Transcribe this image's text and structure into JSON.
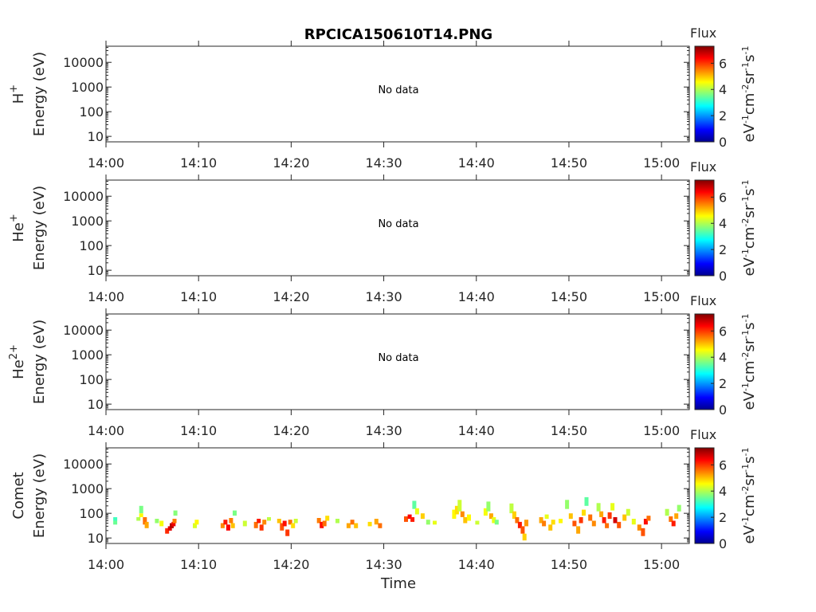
{
  "chart_data": [
    {
      "type": "heatmap",
      "title": "RPCICA150610T14.PNG",
      "species": "H",
      "species_charge": "+",
      "ylabel": "Energy (eV)",
      "yscale": "log",
      "ylim": [
        6,
        45000
      ],
      "yticks": [
        "10",
        "100",
        "1000",
        "10000"
      ],
      "xlim": [
        "14:00",
        "15:03"
      ],
      "xticks": [
        "14:00",
        "14:10",
        "14:20",
        "14:30",
        "14:40",
        "14:50",
        "15:00"
      ],
      "annotation": "No data",
      "colorbar": {
        "label": "Flux",
        "units": "eV",
        "units_b": "-1",
        "units_c": "cm",
        "units_d": "-2",
        "units_e": "sr",
        "units_f": "-1",
        "units_g": "s",
        "units_h": "-1",
        "ticks": [
          "0",
          "2",
          "4",
          "6"
        ],
        "range": [
          0,
          7.3
        ]
      },
      "cells": []
    },
    {
      "type": "heatmap",
      "species": "He",
      "species_charge": "+",
      "ylabel": "Energy (eV)",
      "yscale": "log",
      "ylim": [
        6,
        45000
      ],
      "yticks": [
        "10",
        "100",
        "1000",
        "10000"
      ],
      "xlim": [
        "14:00",
        "15:03"
      ],
      "xticks": [
        "14:00",
        "14:10",
        "14:20",
        "14:30",
        "14:40",
        "14:50",
        "15:00"
      ],
      "annotation": "No data",
      "colorbar": {
        "label": "Flux",
        "ticks": [
          "0",
          "2",
          "4",
          "6"
        ],
        "range": [
          0,
          7.3
        ]
      },
      "cells": []
    },
    {
      "type": "heatmap",
      "species": "He",
      "species_charge": "2+",
      "ylabel": "Energy (eV)",
      "yscale": "log",
      "ylim": [
        6,
        45000
      ],
      "yticks": [
        "10",
        "100",
        "1000",
        "10000"
      ],
      "xlim": [
        "14:00",
        "15:03"
      ],
      "xticks": [
        "14:00",
        "14:10",
        "14:20",
        "14:30",
        "14:40",
        "14:50",
        "15:00"
      ],
      "annotation": "No data",
      "colorbar": {
        "label": "Flux",
        "ticks": [
          "0",
          "2",
          "4",
          "6"
        ],
        "range": [
          0,
          7.3
        ]
      },
      "cells": []
    },
    {
      "type": "heatmap",
      "species": "Comet",
      "species_charge": "",
      "ylabel": "Energy (eV)",
      "xlabel": "Time",
      "yscale": "log",
      "ylim": [
        6,
        45000
      ],
      "yticks": [
        "10",
        "100",
        "1000",
        "10000"
      ],
      "xlim": [
        "14:00",
        "15:03"
      ],
      "xticks": [
        "14:00",
        "14:10",
        "14:20",
        "14:30",
        "14:40",
        "14:50",
        "15:00"
      ],
      "annotation": "",
      "colorbar": {
        "label": "Flux",
        "ticks": [
          "0",
          "2",
          "4",
          "6"
        ],
        "range": [
          0,
          7.3
        ]
      },
      "cell_columns": [
        "time_min",
        "energy_low_eV",
        "energy_high_eV",
        "flux"
      ],
      "cells": [
        [
          1.0,
          35,
          50,
          3.5
        ],
        [
          1.0,
          50,
          70,
          3.2
        ],
        [
          3.5,
          50,
          70,
          4.0
        ],
        [
          3.8,
          70,
          100,
          4.6
        ],
        [
          3.8,
          100,
          200,
          3.6
        ],
        [
          4.2,
          35,
          70,
          5.6
        ],
        [
          4.4,
          25,
          45,
          5.2
        ],
        [
          5.5,
          40,
          60,
          3.8
        ],
        [
          6.0,
          30,
          50,
          4.5
        ],
        [
          6.6,
          15,
          25,
          6.1
        ],
        [
          6.9,
          20,
          30,
          6.6
        ],
        [
          7.1,
          25,
          40,
          6.9
        ],
        [
          7.3,
          30,
          45,
          6.5
        ],
        [
          7.4,
          40,
          60,
          5.5
        ],
        [
          7.5,
          80,
          130,
          3.7
        ],
        [
          9.6,
          25,
          40,
          4.3
        ],
        [
          9.8,
          35,
          55,
          4.6
        ],
        [
          12.6,
          25,
          40,
          5.4
        ],
        [
          12.9,
          35,
          55,
          6.2
        ],
        [
          13.2,
          20,
          35,
          6.4
        ],
        [
          13.5,
          40,
          65,
          5.5
        ],
        [
          13.7,
          25,
          40,
          5.0
        ],
        [
          13.9,
          80,
          130,
          3.6
        ],
        [
          15.0,
          30,
          50,
          4.2
        ],
        [
          16.2,
          25,
          45,
          5.6
        ],
        [
          16.5,
          40,
          60,
          6.2
        ],
        [
          16.8,
          20,
          35,
          6.0
        ],
        [
          17.1,
          35,
          55,
          5.4
        ],
        [
          17.6,
          50,
          70,
          4.1
        ],
        [
          18.7,
          40,
          60,
          5.0
        ],
        [
          19.0,
          20,
          40,
          5.8
        ],
        [
          19.3,
          30,
          50,
          6.3
        ],
        [
          19.6,
          12,
          22,
          6.0
        ],
        [
          19.9,
          35,
          55,
          5.6
        ],
        [
          20.2,
          25,
          40,
          4.8
        ],
        [
          20.5,
          40,
          60,
          4.2
        ],
        [
          23.0,
          40,
          65,
          5.5
        ],
        [
          23.3,
          25,
          45,
          6.3
        ],
        [
          23.6,
          30,
          50,
          5.6
        ],
        [
          23.9,
          50,
          80,
          4.8
        ],
        [
          25.0,
          40,
          60,
          4.0
        ],
        [
          26.2,
          25,
          40,
          5.2
        ],
        [
          26.6,
          35,
          55,
          5.6
        ],
        [
          27.0,
          25,
          40,
          5.0
        ],
        [
          28.5,
          30,
          45,
          4.8
        ],
        [
          29.2,
          35,
          60,
          5.2
        ],
        [
          29.6,
          25,
          40,
          5.6
        ],
        [
          32.4,
          45,
          75,
          5.8
        ],
        [
          32.8,
          60,
          90,
          6.4
        ],
        [
          33.1,
          45,
          70,
          6.2
        ],
        [
          33.3,
          150,
          320,
          3.4
        ],
        [
          33.6,
          90,
          160,
          4.4
        ],
        [
          34.2,
          60,
          100,
          4.9
        ],
        [
          34.8,
          35,
          55,
          3.8
        ],
        [
          35.5,
          35,
          50,
          4.4
        ],
        [
          37.6,
          60,
          140,
          4.6
        ],
        [
          37.9,
          90,
          200,
          4.8
        ],
        [
          38.2,
          120,
          350,
          4.2
        ],
        [
          38.5,
          70,
          120,
          5.4
        ],
        [
          38.8,
          40,
          70,
          5.0
        ],
        [
          39.2,
          50,
          90,
          4.6
        ],
        [
          40.1,
          35,
          50,
          4.2
        ],
        [
          41.0,
          80,
          160,
          4.5
        ],
        [
          41.3,
          120,
          300,
          3.8
        ],
        [
          41.6,
          60,
          100,
          5.2
        ],
        [
          41.9,
          40,
          70,
          4.4
        ],
        [
          42.2,
          35,
          55,
          3.6
        ],
        [
          43.8,
          100,
          250,
          4.1
        ],
        [
          44.1,
          60,
          120,
          4.9
        ],
        [
          44.4,
          40,
          70,
          5.6
        ],
        [
          44.7,
          25,
          45,
          6.2
        ],
        [
          45.0,
          15,
          30,
          5.8
        ],
        [
          45.2,
          8,
          15,
          4.9
        ],
        [
          45.4,
          30,
          55,
          5.3
        ],
        [
          47.0,
          40,
          70,
          5.2
        ],
        [
          47.3,
          30,
          50,
          5.5
        ],
        [
          47.6,
          60,
          90,
          4.4
        ],
        [
          48.0,
          20,
          35,
          5.0
        ],
        [
          48.3,
          35,
          55,
          4.8
        ],
        [
          49.1,
          40,
          60,
          4.6
        ],
        [
          49.8,
          150,
          350,
          3.8
        ],
        [
          50.2,
          60,
          100,
          5.0
        ],
        [
          50.6,
          30,
          50,
          5.8
        ],
        [
          51.0,
          15,
          30,
          5.2
        ],
        [
          51.3,
          40,
          70,
          6.0
        ],
        [
          51.6,
          80,
          140,
          4.8
        ],
        [
          51.9,
          200,
          450,
          3.4
        ],
        [
          52.3,
          50,
          90,
          5.6
        ],
        [
          52.7,
          30,
          50,
          5.4
        ],
        [
          53.2,
          120,
          260,
          4.0
        ],
        [
          53.5,
          70,
          120,
          5.2
        ],
        [
          53.8,
          40,
          70,
          6.2
        ],
        [
          54.1,
          25,
          40,
          5.6
        ],
        [
          54.4,
          60,
          110,
          6.0
        ],
        [
          54.7,
          130,
          260,
          4.4
        ],
        [
          55.0,
          40,
          70,
          6.7
        ],
        [
          55.4,
          25,
          45,
          5.8
        ],
        [
          56.0,
          50,
          90,
          5.0
        ],
        [
          56.4,
          80,
          150,
          4.2
        ],
        [
          57.0,
          35,
          60,
          4.4
        ],
        [
          57.6,
          20,
          35,
          5.4
        ],
        [
          58.0,
          12,
          25,
          5.8
        ],
        [
          58.3,
          35,
          60,
          6.3
        ],
        [
          58.6,
          50,
          80,
          5.6
        ],
        [
          60.6,
          80,
          150,
          4.0
        ],
        [
          61.0,
          45,
          75,
          5.6
        ],
        [
          61.3,
          30,
          50,
          6.2
        ],
        [
          61.6,
          60,
          100,
          5.2
        ],
        [
          61.9,
          120,
          220,
          3.8
        ]
      ]
    }
  ]
}
